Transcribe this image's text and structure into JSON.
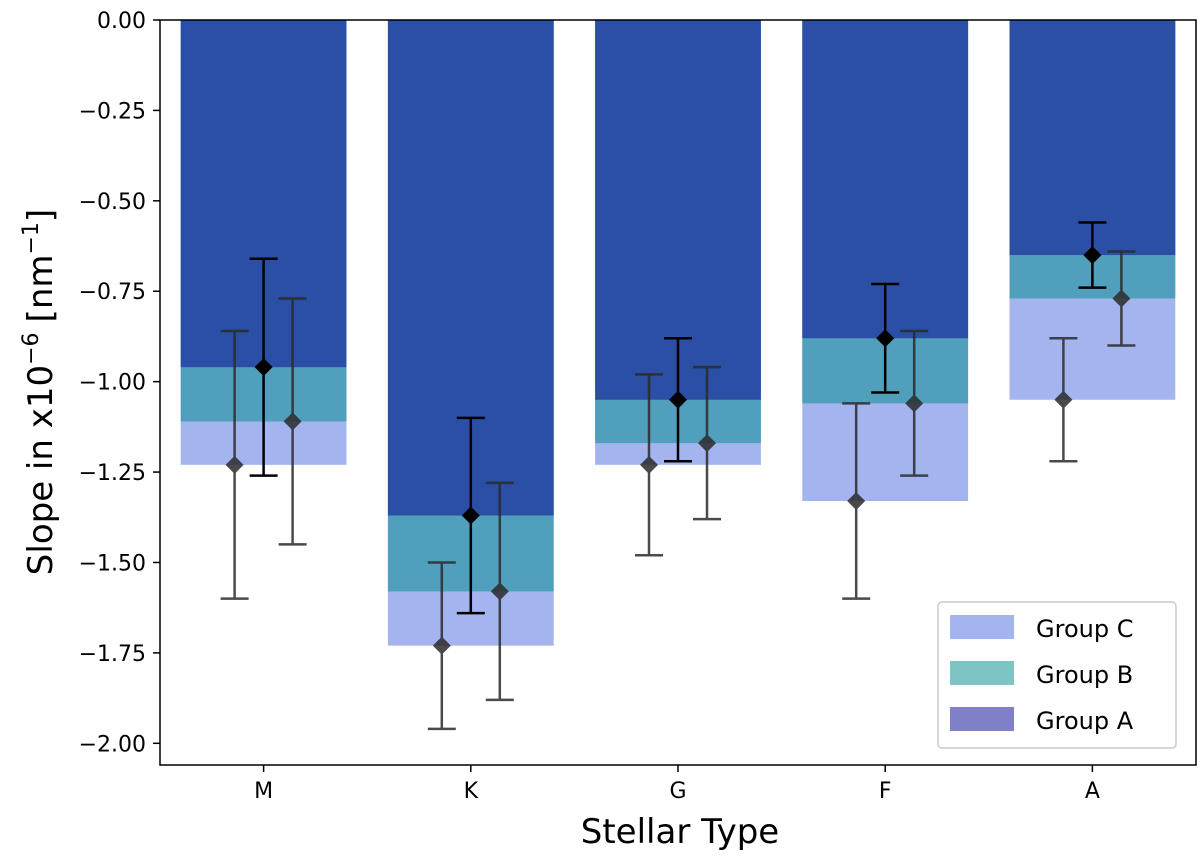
{
  "chart_data": {
    "type": "bar",
    "title": "",
    "xlabel": "Stellar Type",
    "ylabel_main": "Slope in x10",
    "ylabel_exponent": "−6",
    "ylabel_unit": "[nm",
    "ylabel_unit_exponent": "−1",
    "ylabel_unit_close": "]",
    "ylim": [
      -2.06,
      0
    ],
    "yticks": [
      0,
      -0.25,
      -0.5,
      -0.75,
      -1.0,
      -1.25,
      -1.5,
      -1.75,
      -2.0
    ],
    "ytick_labels": [
      "0.00",
      "−0.25",
      "−0.50",
      "−0.75",
      "−1.00",
      "−1.25",
      "−1.50",
      "−1.75",
      "−2.00"
    ],
    "categories": [
      "M",
      "K",
      "G",
      "F",
      "A"
    ],
    "series": [
      {
        "name": "Group C",
        "color": "#a3b4ef",
        "values": [
          -1.23,
          -1.73,
          -1.23,
          -1.33,
          -1.05
        ],
        "errors": [
          0.37,
          0.23,
          0.25,
          0.27,
          0.17
        ],
        "offset": -1
      },
      {
        "name": "Group B",
        "color": "#50a0bd",
        "values": [
          -1.11,
          -1.58,
          -1.17,
          -1.06,
          -0.77
        ],
        "errors": [
          0.34,
          0.3,
          0.21,
          0.2,
          0.13
        ],
        "offset": 1
      },
      {
        "name": "Group A",
        "color": "#2a4fa4",
        "values": [
          -0.96,
          -1.37,
          -1.05,
          -0.88,
          -0.65
        ],
        "errors": [
          0.3,
          0.27,
          0.17,
          0.15,
          0.09
        ],
        "offset": 0
      }
    ],
    "legend": {
      "position": "lower right",
      "entries": [
        {
          "label": "Group C",
          "color": "#a3b4ef"
        },
        {
          "label": "Group B",
          "color": "#7ec4c4"
        },
        {
          "label": "Group A",
          "color": "#8080c8"
        }
      ]
    }
  }
}
